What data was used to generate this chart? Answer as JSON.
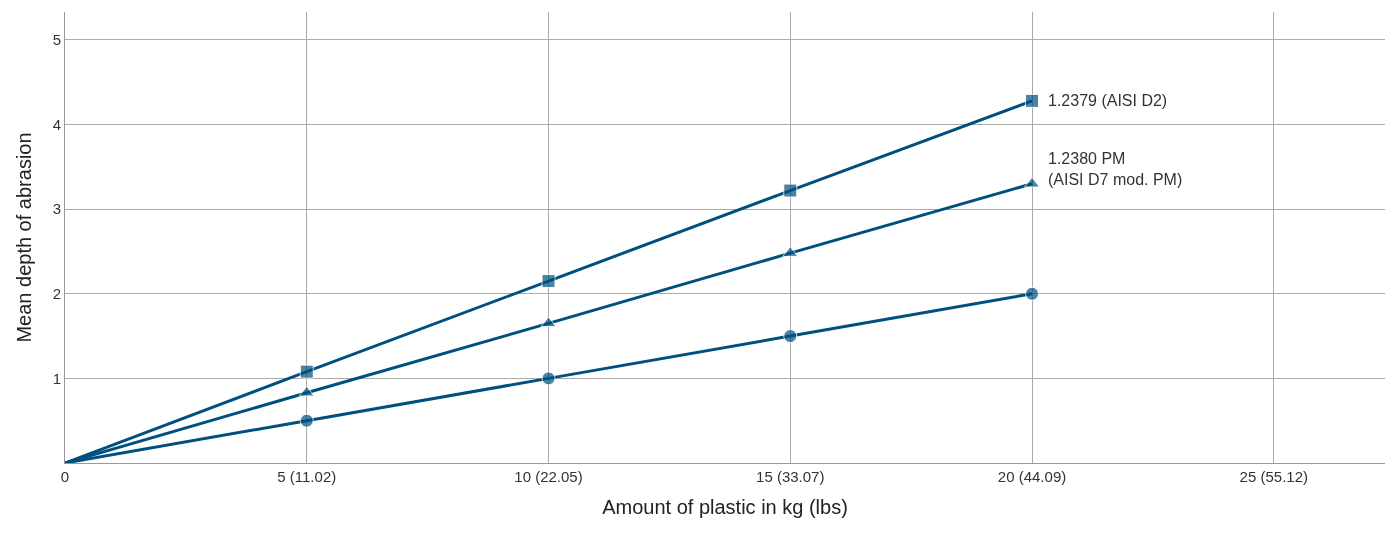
{
  "chart_data": {
    "type": "line",
    "xlabel": "Amount of plastic in kg (lbs)",
    "ylabel": "Mean depth of abrasion",
    "categories": [
      "0",
      "5 (11.02)",
      "10 (22.05)",
      "15 (33.07)",
      "20 (44.09)",
      "25 (55.12)"
    ],
    "series": [
      {
        "name": "1.2379 (AISI D2)",
        "color": "#00507f",
        "marker": "square",
        "values": [
          0,
          1.08,
          2.15,
          3.22,
          4.28,
          null
        ]
      },
      {
        "name": "1.2380 PM\n(AISI D7 mod. PM)",
        "color": "#00507f",
        "marker": "triangle",
        "values": [
          0,
          0.83,
          1.65,
          2.48,
          3.3,
          null
        ]
      },
      {
        "color": "#00507f",
        "marker": "circle",
        "values": [
          0,
          0.5,
          1.0,
          1.5,
          2.0,
          null
        ]
      }
    ],
    "ylim": [
      0,
      5.33
    ],
    "yticks": [
      1,
      2,
      3,
      4,
      5
    ],
    "grid": true,
    "legend": false,
    "line_style": "solid"
  }
}
